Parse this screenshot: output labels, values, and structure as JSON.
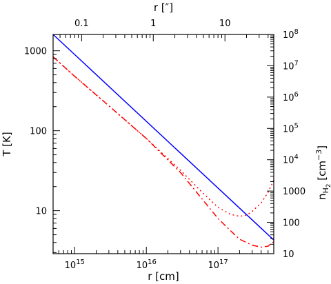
{
  "chart_data": {
    "type": "line",
    "x_scale": "log",
    "xlabel_bottom": "r [cm]",
    "xlim": [
      500000000000000.0,
      6e+17
    ],
    "xticks": [
      {
        "value": 1000000000000000.0,
        "base": "10",
        "exp": "15"
      },
      {
        "value": 1e+16,
        "base": "10",
        "exp": "16"
      },
      {
        "value": 1e+17,
        "base": "10",
        "exp": "17"
      }
    ],
    "xlabel_top": "r [″]",
    "xlim_top": [
      0.04,
      48
    ],
    "xticks_top": [
      {
        "value": 0.1,
        "label": "0.1"
      },
      {
        "value": 1,
        "label": "1"
      },
      {
        "value": 10,
        "label": "10"
      }
    ],
    "ylabel_left": "T [K]",
    "y_scale": "log",
    "ylim": [
      2.9,
      1600
    ],
    "yticks_left": [
      {
        "value": 10,
        "label": "10"
      },
      {
        "value": 100,
        "label": "100"
      },
      {
        "value": 1000,
        "label": "1000"
      }
    ],
    "ylabel_right": {
      "main": "n",
      "sub": "H",
      "subsub": "2",
      "unit": " [cm",
      "unit_exp": "−3",
      "unit_close": "]"
    },
    "ylim_right": [
      10,
      100000000.0
    ],
    "yticks_right": [
      {
        "value": 10,
        "label": "10"
      },
      {
        "value": 100,
        "label": "100"
      },
      {
        "value": 1000,
        "label": "1000"
      },
      {
        "value": 10000.0,
        "base": "10",
        "exp": "4"
      },
      {
        "value": 100000.0,
        "base": "10",
        "exp": "5"
      },
      {
        "value": 1000000.0,
        "base": "10",
        "exp": "6"
      },
      {
        "value": 10000000.0,
        "base": "10",
        "exp": "7"
      },
      {
        "value": 100000000.0,
        "base": "10",
        "exp": "8"
      }
    ],
    "grid": false,
    "series": [
      {
        "axis": "left",
        "color": "#0000ff",
        "dash": "solid",
        "points": [
          [
            500000000000000.0,
            1600
          ],
          [
            6e+17,
            4.3
          ]
        ]
      },
      {
        "axis": "left",
        "color": "#ff0000",
        "dash": "dotted",
        "points": [
          [
            500000000000000.0,
            840
          ],
          [
            1000000000000000.0,
            480
          ],
          [
            3000000000000000.0,
            205
          ],
          [
            1e+16,
            80
          ],
          [
            3e+16,
            32
          ],
          [
            6e+16,
            17
          ],
          [
            1e+17,
            11
          ],
          [
            1.5e+17,
            9.0
          ],
          [
            2e+17,
            8.5
          ],
          [
            2.5e+17,
            8.8
          ],
          [
            3e+17,
            9.8
          ],
          [
            4e+17,
            12.5
          ],
          [
            5e+17,
            17
          ],
          [
            6e+17,
            24
          ]
        ]
      },
      {
        "axis": "left",
        "color": "#ff0000",
        "dash": "dashdot",
        "points": [
          [
            500000000000000.0,
            840
          ],
          [
            1000000000000000.0,
            480
          ],
          [
            3000000000000000.0,
            205
          ],
          [
            1e+16,
            80
          ],
          [
            3e+16,
            30
          ],
          [
            6e+16,
            14
          ],
          [
            1e+17,
            8.0
          ],
          [
            1.5e+17,
            5.6
          ],
          [
            2e+17,
            4.4
          ],
          [
            3e+17,
            3.7
          ],
          [
            4e+17,
            3.5
          ],
          [
            5e+17,
            3.6
          ],
          [
            6e+17,
            4.1
          ]
        ]
      }
    ]
  }
}
